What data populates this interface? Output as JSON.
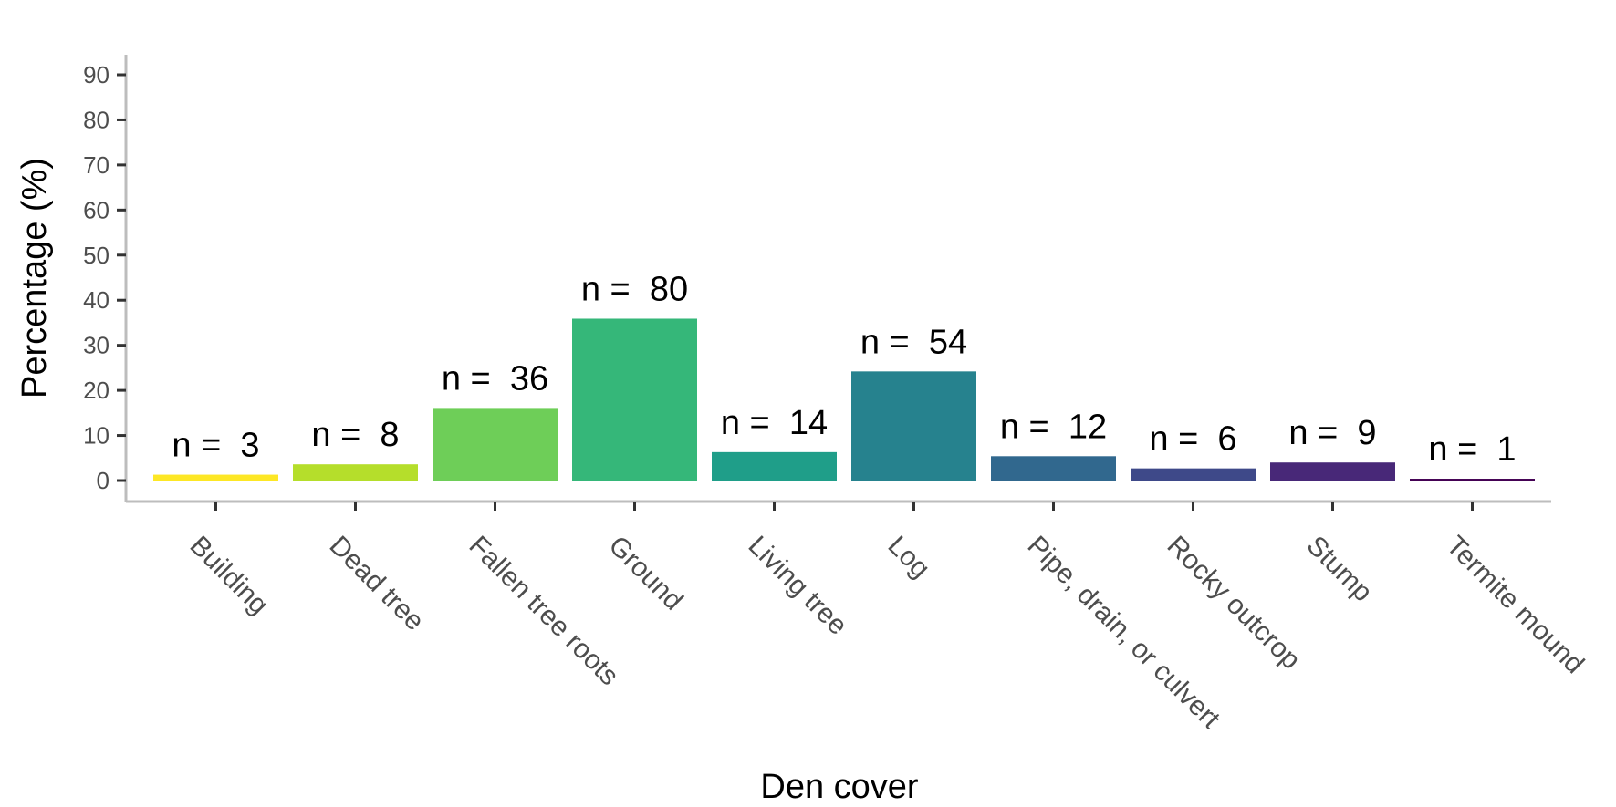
{
  "chart_data": {
    "type": "bar",
    "xlabel": "Den cover",
    "ylabel": "Percentage (%)",
    "ylim": [
      0,
      90
    ],
    "yticks": [
      "0",
      "10",
      "20",
      "30",
      "40",
      "50",
      "60",
      "70",
      "80",
      "90"
    ],
    "categories": [
      "Building",
      "Dead tree",
      "Fallen tree roots",
      "Ground",
      "Living tree",
      "Log",
      "Pipe, drain, or culvert",
      "Rocky outcrop",
      "Stump",
      "Termite mound"
    ],
    "values": [
      1.3,
      3.6,
      16.1,
      35.9,
      6.3,
      24.2,
      5.4,
      2.7,
      4.0,
      0.4
    ],
    "n_labels": [
      "n =  3",
      "n =  8",
      "n =  36",
      "n =  80",
      "n =  14",
      "n =  54",
      "n =  12",
      "n =  6",
      "n =  9",
      "n =  1"
    ],
    "colors": [
      "#FDE725",
      "#B5DE2B",
      "#6ECE58",
      "#35B779",
      "#1F9E89",
      "#26828E",
      "#31688E",
      "#3E4989",
      "#482878",
      "#440154"
    ],
    "grid": false,
    "legend": "none"
  }
}
